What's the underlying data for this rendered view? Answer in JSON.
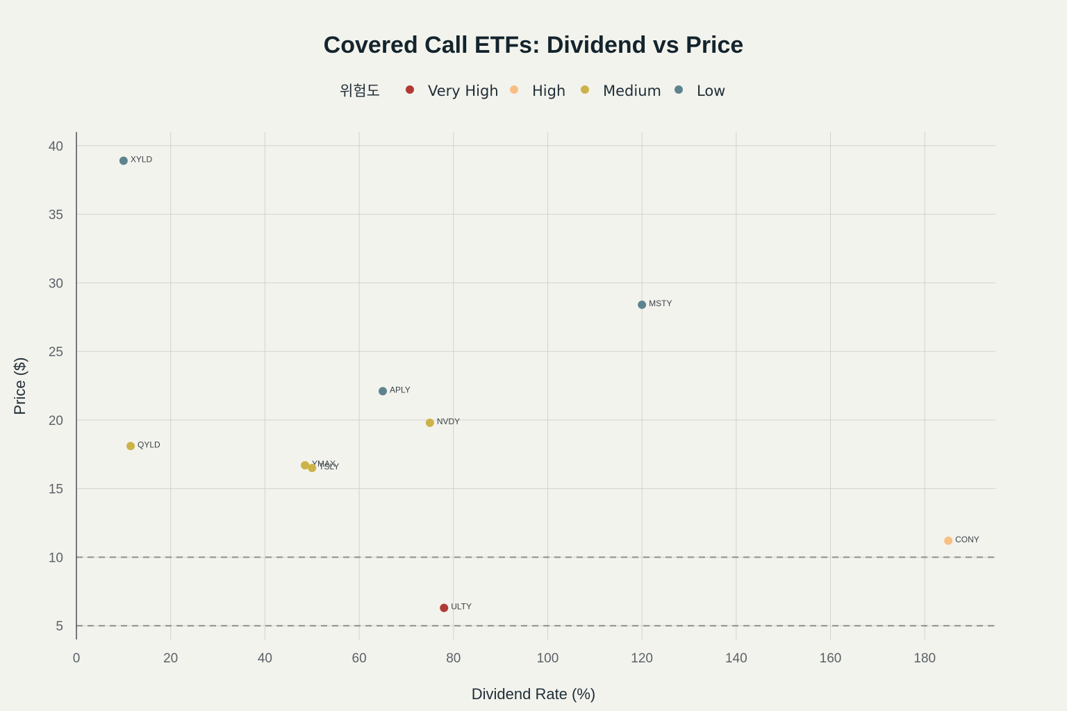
{
  "chart_data": {
    "type": "scatter",
    "title": "Covered Call ETFs: Dividend vs Price",
    "xlabel": "Dividend Rate (%)",
    "ylabel": "Price ($)",
    "xlim": [
      0,
      195
    ],
    "ylim": [
      4,
      41
    ],
    "x_ticks": [
      0,
      20,
      40,
      60,
      80,
      100,
      120,
      140,
      160,
      180
    ],
    "y_ticks": [
      5,
      10,
      15,
      20,
      25,
      30,
      35,
      40
    ],
    "grid": true,
    "reference_lines_y": [
      5,
      10
    ],
    "legend": {
      "title": "위험도",
      "placement": "top-center",
      "entries": [
        {
          "name": "Very High",
          "color": "#b03a33"
        },
        {
          "name": "High",
          "color": "#f8bf84"
        },
        {
          "name": "Medium",
          "color": "#cbb34a"
        },
        {
          "name": "Low",
          "color": "#5d848e"
        }
      ]
    },
    "points": [
      {
        "label": "XYLD",
        "x": 10,
        "y": 38.9,
        "risk": "Low"
      },
      {
        "label": "MSTY",
        "x": 120,
        "y": 28.4,
        "risk": "Low"
      },
      {
        "label": "APLY",
        "x": 65,
        "y": 22.1,
        "risk": "Low"
      },
      {
        "label": "NVDY",
        "x": 75,
        "y": 19.8,
        "risk": "Medium"
      },
      {
        "label": "QYLD",
        "x": 11.5,
        "y": 18.1,
        "risk": "Medium"
      },
      {
        "label": "YMAX",
        "x": 48.5,
        "y": 16.7,
        "risk": "Medium"
      },
      {
        "label": "TSLY",
        "x": 50,
        "y": 16.5,
        "risk": "Medium"
      },
      {
        "label": "CONY",
        "x": 185,
        "y": 11.2,
        "risk": "High"
      },
      {
        "label": "ULTY",
        "x": 78,
        "y": 6.3,
        "risk": "Very High"
      }
    ]
  }
}
